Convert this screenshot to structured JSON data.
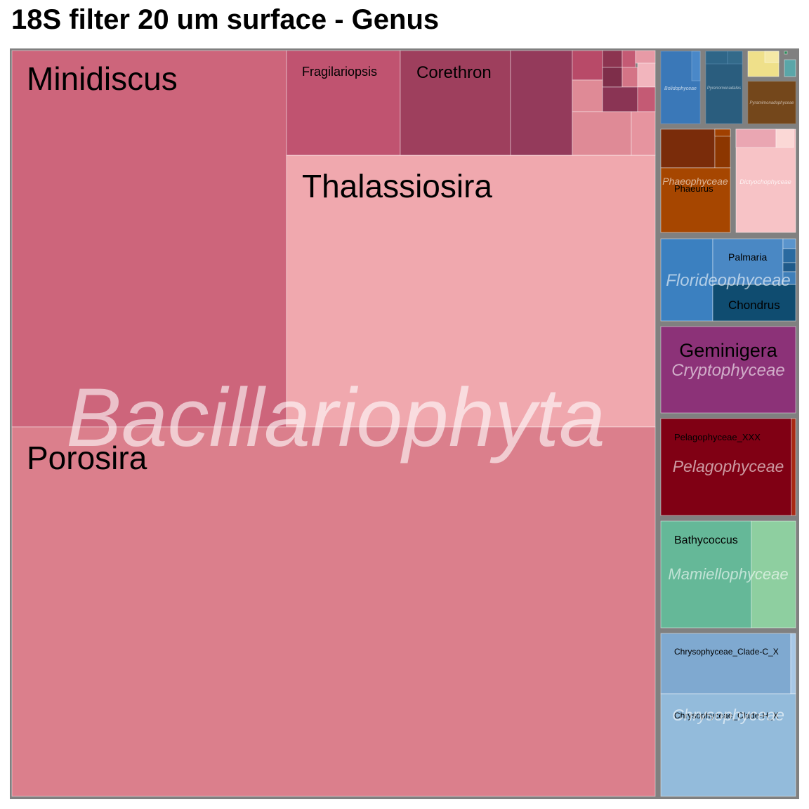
{
  "title": "18S filter 20 um surface - Genus",
  "chart_data": {
    "type": "treemap",
    "title": "18S filter 20 um surface - Genus",
    "groups": [
      {
        "name": "Bacillariophyta",
        "color": "#d6697f",
        "genera": [
          {
            "name": "Porosira",
            "color": "#db7f8c"
          },
          {
            "name": "Minidiscus",
            "color": "#cd657b"
          },
          {
            "name": "Thalassiosira",
            "color": "#f0a8ae"
          },
          {
            "name": "Fragilariopsis",
            "color": "#c05370"
          },
          {
            "name": "Corethron",
            "color": "#9e3f5d"
          },
          {
            "name": "",
            "color": "#943a5b"
          },
          {
            "name": "",
            "color": "#df8a96"
          }
        ]
      },
      {
        "name": "Bolidophyceae",
        "color": "#3a78b8",
        "genera": []
      },
      {
        "name": "Pyrenomonadales",
        "color": "#2a5d7e",
        "genera": []
      },
      {
        "name": "",
        "color": "#efe08a",
        "genera": []
      },
      {
        "name": "Pyramimonadophyceae",
        "color": "#74471b",
        "genera": []
      },
      {
        "name": "Phaeophyceae",
        "color": "#a64600",
        "genera": [
          {
            "name": "Phaeurus",
            "color": "#a64600"
          }
        ]
      },
      {
        "name": "Dictyochophyceae",
        "color": "#f7c3c6",
        "genera": []
      },
      {
        "name": "Florideophyceae",
        "color": "#3b80c0",
        "genera": [
          {
            "name": "Palmaria",
            "color": "#4a88c4"
          },
          {
            "name": "Chondrus",
            "color": "#0f4c70"
          }
        ]
      },
      {
        "name": "Cryptophyceae",
        "color": "#8c3278",
        "genera": [
          {
            "name": "Geminigera",
            "color": "#8c3278"
          }
        ]
      },
      {
        "name": "Pelagophyceae",
        "color": "#800014",
        "genera": [
          {
            "name": "Pelagophyceae_XXX",
            "color": "#800014"
          }
        ]
      },
      {
        "name": "Mamiellophyceae",
        "color": "#65b898",
        "genera": [
          {
            "name": "Bathycoccus",
            "color": "#65b898"
          }
        ]
      },
      {
        "name": "Chrysophyceae",
        "color": "#93bbdb",
        "genera": [
          {
            "name": "Chrysophyceae_Clade-C_X",
            "color": "#7fa9d0"
          },
          {
            "name": "Chrysophyceae_Clade-H_X",
            "color": "#93bbdb"
          }
        ]
      }
    ]
  }
}
